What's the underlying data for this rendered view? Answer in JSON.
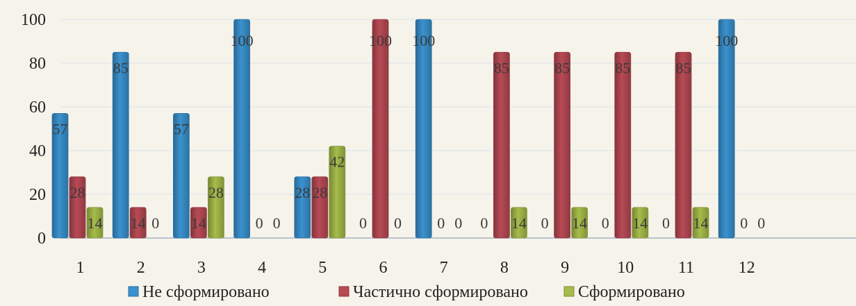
{
  "chart_data": {
    "type": "bar",
    "title": "",
    "xlabel": "",
    "ylabel": "",
    "categories": [
      "1",
      "2",
      "3",
      "4",
      "5",
      "6",
      "7",
      "8",
      "9",
      "10",
      "11",
      "12"
    ],
    "series": [
      {
        "name": "Не сформировано",
        "values": [
          57,
          85,
          57,
          100,
          28,
          0,
          100,
          0,
          0,
          0,
          0,
          100
        ],
        "color": "#3a92cf"
      },
      {
        "name": "Частично сформировано",
        "values": [
          28,
          14,
          14,
          0,
          28,
          100,
          0,
          85,
          85,
          85,
          85,
          0
        ],
        "color": "#b84a55"
      },
      {
        "name": "Сформировано",
        "values": [
          14,
          0,
          28,
          0,
          42,
          0,
          0,
          14,
          14,
          14,
          14,
          0
        ],
        "color": "#a6bc4a"
      }
    ],
    "ylim": [
      0,
      100
    ],
    "yticks": [
      0,
      20,
      40,
      60,
      80,
      100
    ],
    "grid": true,
    "legend": "bottom",
    "data_labels": true
  }
}
